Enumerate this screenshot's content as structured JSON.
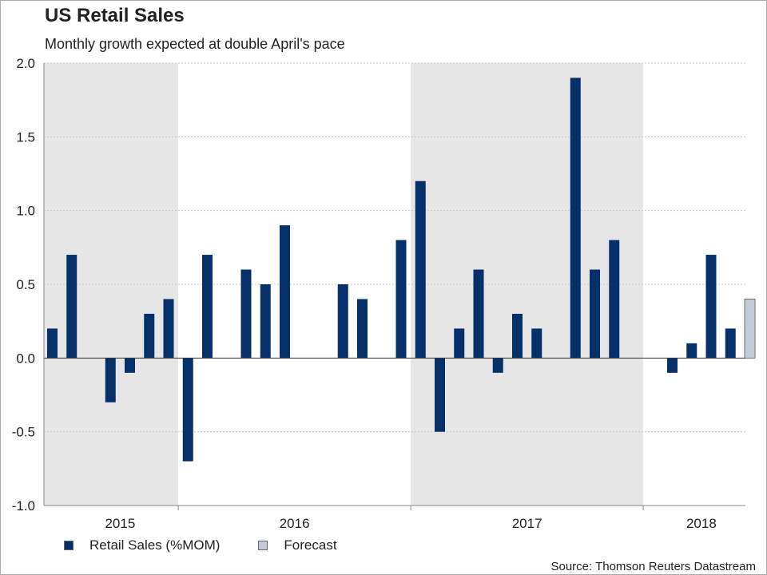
{
  "title": "US Retail Sales",
  "subtitle": "Monthly growth expected at double April's pace",
  "source": "Source: Thomson Reuters Datastream",
  "colors": {
    "actual": "#06306a",
    "forecast": "#c3ccd6",
    "shade": "#e6e6e6",
    "grid": "#c8c8c8",
    "axis": "#888888"
  },
  "legend": [
    {
      "label": "Retail Sales (%MOM)",
      "color": "#06306a"
    },
    {
      "label": "Forecast",
      "color": "#c3ccd6"
    }
  ],
  "chart_data": {
    "type": "bar",
    "title": "US Retail Sales",
    "ylim": [
      -1.0,
      2.0
    ],
    "yticks": [
      2.0,
      1.5,
      1.0,
      0.5,
      0.0,
      -0.5,
      -1.0
    ],
    "ytick_labels": [
      "2.0",
      "1.5",
      "1.0",
      "0.5",
      "0.0",
      "-0.5",
      "-1.0"
    ],
    "grid": true,
    "year_labels": [
      {
        "label": "2015",
        "center_index": 3.5
      },
      {
        "label": "2016",
        "center_index": 12.5
      },
      {
        "label": "2017",
        "center_index": 24.5
      },
      {
        "label": "2018",
        "center_index": 33.5
      }
    ],
    "shaded_spans": [
      [
        -0.5,
        6.5
      ],
      [
        18.5,
        30.5
      ]
    ],
    "series": [
      {
        "name": "Retail Sales (%MOM)",
        "values": [
          0.2,
          0.7,
          null,
          -0.3,
          -0.1,
          0.3,
          0.4,
          -0.7,
          0.7,
          null,
          0.6,
          0.5,
          0.9,
          null,
          null,
          0.5,
          0.4,
          null,
          0.8,
          1.2,
          -0.5,
          0.2,
          0.6,
          -0.1,
          0.3,
          0.2,
          null,
          1.9,
          0.6,
          0.8,
          null,
          null,
          -0.1,
          0.1,
          0.7,
          0.2,
          null
        ]
      },
      {
        "name": "Forecast",
        "values": [
          null,
          null,
          null,
          null,
          null,
          null,
          null,
          null,
          null,
          null,
          null,
          null,
          null,
          null,
          null,
          null,
          null,
          null,
          null,
          null,
          null,
          null,
          null,
          null,
          null,
          null,
          null,
          null,
          null,
          null,
          null,
          null,
          null,
          null,
          null,
          null,
          0.4
        ]
      }
    ]
  }
}
